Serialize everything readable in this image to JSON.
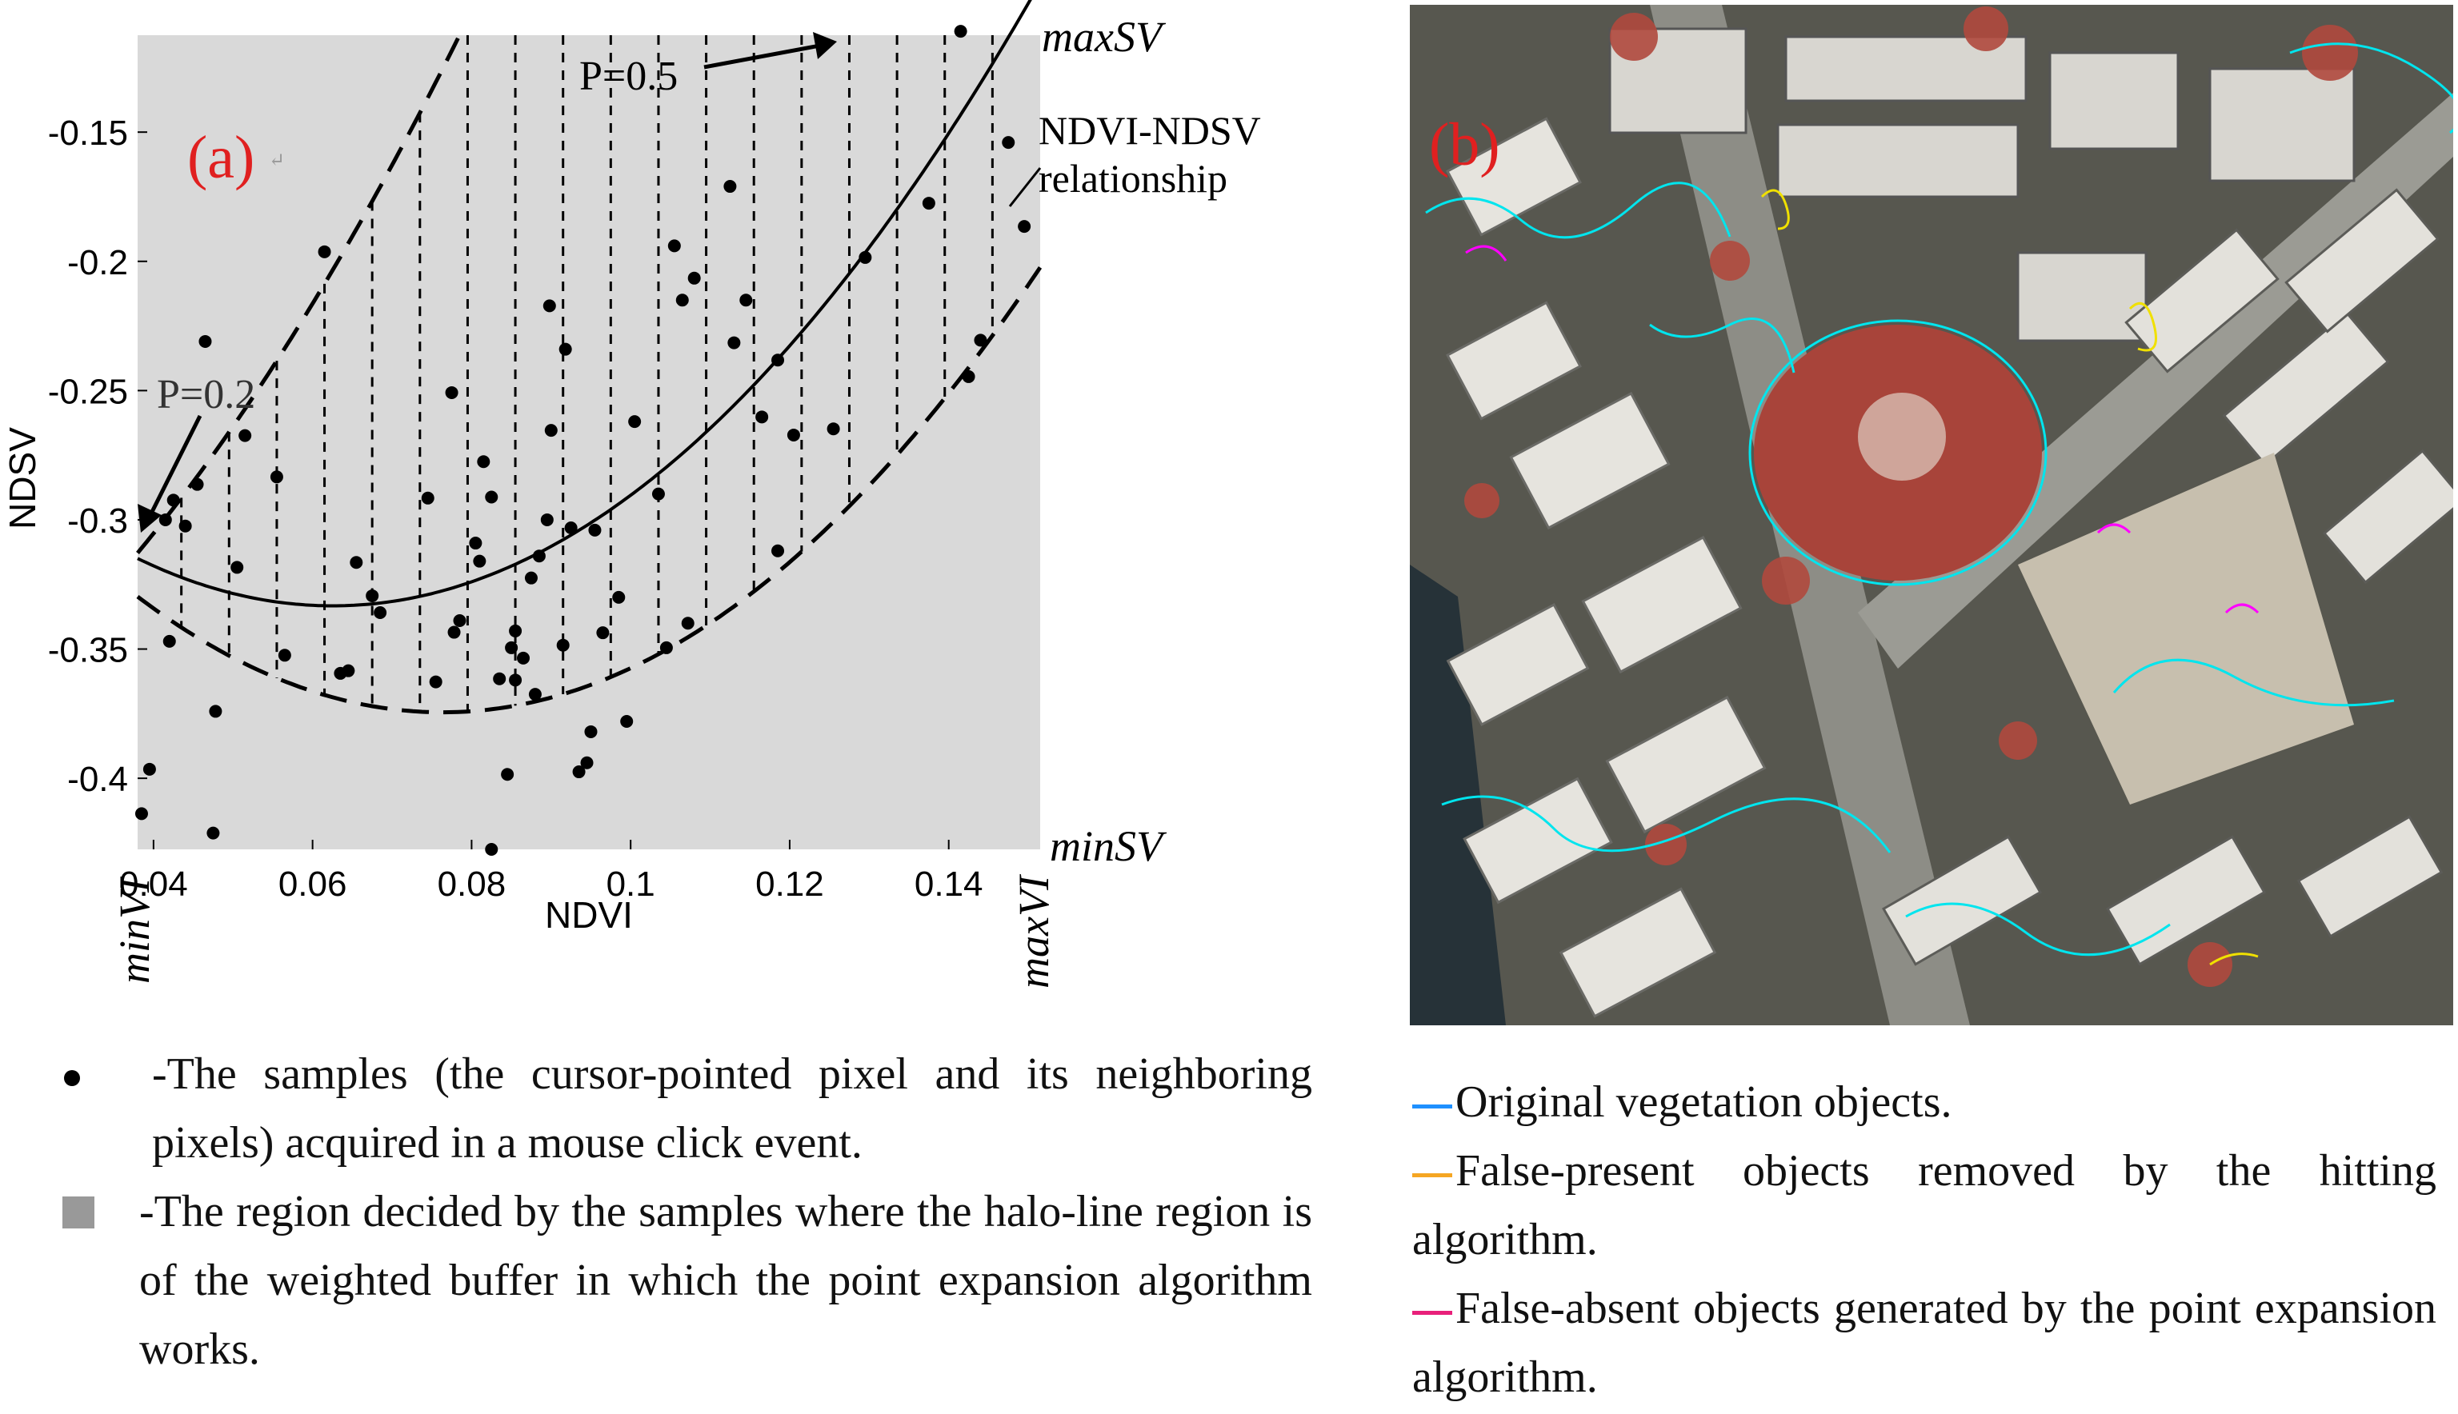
{
  "chart_data": {
    "type": "scatter",
    "panel_label": "(a)",
    "xlabel": "NDVI",
    "ylabel": "NDSV",
    "xlim": [
      0.038,
      0.1515
    ],
    "ylim": [
      -0.4275,
      -0.1125
    ],
    "x_ticks": [
      {
        "value": 0.04,
        "label": "0.04"
      },
      {
        "value": 0.06,
        "label": "0.06"
      },
      {
        "value": 0.08,
        "label": "0.08"
      },
      {
        "value": 0.1,
        "label": "0.1"
      },
      {
        "value": 0.12,
        "label": "0.12"
      },
      {
        "value": 0.14,
        "label": "0.14"
      }
    ],
    "y_ticks": [
      {
        "value": -0.15,
        "label": "-0.15"
      },
      {
        "value": -0.2,
        "label": "-0.2"
      },
      {
        "value": -0.25,
        "label": "-0.25"
      },
      {
        "value": -0.3,
        "label": "-0.3"
      },
      {
        "value": -0.35,
        "label": "-0.35"
      },
      {
        "value": -0.4,
        "label": "-0.4"
      }
    ],
    "annotations": {
      "max_sv": "maxSV",
      "min_sv": "minSV",
      "min_vi": "minVI",
      "max_vi": "maxVI",
      "p_upper": "P=0.5",
      "p_lower": "P=0.2",
      "curve_label_line1": "NDVI-NDSV",
      "curve_label_line2": "relationship"
    },
    "curves": {
      "relationship": {
        "a": 30.46,
        "b": -3.809,
        "c": -0.2142
      },
      "upper_bound": {
        "a": 30.46,
        "b": 1.4,
        "c": -0.41
      },
      "lower_bound": {
        "a": 30.46,
        "b": -4.65,
        "c": -0.197
      }
    },
    "hatch_x": [
      0.0435,
      0.0495,
      0.0555,
      0.0615,
      0.0675,
      0.0735,
      0.0795,
      0.0855,
      0.0915,
      0.0975,
      0.1035,
      0.1095,
      0.1155,
      0.1215,
      0.1275,
      0.1335,
      0.1395,
      0.1455
    ],
    "points": [
      [
        0.0385,
        -0.4137
      ],
      [
        0.0395,
        -0.3965
      ],
      [
        0.0415,
        -0.3
      ],
      [
        0.042,
        -0.347
      ],
      [
        0.0425,
        -0.2924
      ],
      [
        0.044,
        -0.3024
      ],
      [
        0.0455,
        -0.2863
      ],
      [
        0.0465,
        -0.231
      ],
      [
        0.0475,
        -0.4212
      ],
      [
        0.0478,
        -0.3741
      ],
      [
        0.0505,
        -0.3184
      ],
      [
        0.0515,
        -0.2674
      ],
      [
        0.0555,
        -0.2834
      ],
      [
        0.0565,
        -0.3524
      ],
      [
        0.0615,
        -0.1963
      ],
      [
        0.0635,
        -0.3594
      ],
      [
        0.0645,
        -0.3584
      ],
      [
        0.0655,
        -0.3165
      ],
      [
        0.0675,
        -0.3294
      ],
      [
        0.0685,
        -0.3359
      ],
      [
        0.0745,
        -0.2916
      ],
      [
        0.0755,
        -0.3627
      ],
      [
        0.0775,
        -0.2508
      ],
      [
        0.0778,
        -0.3435
      ],
      [
        0.0785,
        -0.339
      ],
      [
        0.0805,
        -0.309
      ],
      [
        0.081,
        -0.316
      ],
      [
        0.0815,
        -0.2775
      ],
      [
        0.0825,
        -0.2912
      ],
      [
        0.0825,
        -0.4275
      ],
      [
        0.0835,
        -0.3615
      ],
      [
        0.0845,
        -0.3985
      ],
      [
        0.085,
        -0.3495
      ],
      [
        0.0855,
        -0.362
      ],
      [
        0.0855,
        -0.343
      ],
      [
        0.0865,
        -0.3535
      ],
      [
        0.0875,
        -0.3225
      ],
      [
        0.0885,
        -0.314
      ],
      [
        0.088,
        -0.3675
      ],
      [
        0.0895,
        -0.3
      ],
      [
        0.0898,
        -0.2172
      ],
      [
        0.09,
        -0.2654
      ],
      [
        0.0915,
        -0.3485
      ],
      [
        0.0918,
        -0.234
      ],
      [
        0.0925,
        -0.3031
      ],
      [
        0.0935,
        -0.3975
      ],
      [
        0.0945,
        -0.394
      ],
      [
        0.095,
        -0.382
      ],
      [
        0.0955,
        -0.304
      ],
      [
        0.0965,
        -0.3437
      ],
      [
        0.0985,
        -0.33
      ],
      [
        0.0995,
        -0.378
      ],
      [
        0.1005,
        -0.262
      ],
      [
        0.1035,
        -0.29
      ],
      [
        0.1045,
        -0.3495
      ],
      [
        0.1055,
        -0.194
      ],
      [
        0.1065,
        -0.215
      ],
      [
        0.1072,
        -0.34
      ],
      [
        0.108,
        -0.2065
      ],
      [
        0.1125,
        -0.171
      ],
      [
        0.113,
        -0.2315
      ],
      [
        0.1145,
        -0.215
      ],
      [
        0.1165,
        -0.2602
      ],
      [
        0.1185,
        -0.312
      ],
      [
        0.1185,
        -0.2382
      ],
      [
        0.1205,
        -0.2672
      ],
      [
        0.1255,
        -0.2648
      ],
      [
        0.1295,
        -0.1985
      ],
      [
        0.1375,
        -0.1775
      ],
      [
        0.1415,
        -0.111
      ],
      [
        0.1425,
        -0.2446
      ],
      [
        0.144,
        -0.2305
      ],
      [
        0.1475,
        -0.154
      ],
      [
        0.1495,
        -0.1865
      ]
    ]
  },
  "chart_colors": {
    "plot_bg": "#d9d9d9",
    "panel_label": "#e02020",
    "ink": "#000000"
  },
  "map_panel": {
    "panel_label": "(b)",
    "label_color": "#e02020",
    "line_colors": {
      "original": "#00e5ee",
      "false_present": "#f0e000",
      "false_absent": "#ff00ff"
    }
  },
  "left_legend": {
    "dot_text": "-The samples (the cursor-pointed pixel and its neighboring pixels) acquired in a mouse click event.",
    "square_text": "-The region decided by the samples where the halo-line region is of the weighted buffer in which the point expansion algorithm works."
  },
  "right_legend": [
    {
      "text": "Original vegetation objects.",
      "color": "#1e90ff"
    },
    {
      "text": "False-present objects removed by the hitting algorithm.",
      "color": "#f5a623"
    },
    {
      "text": "False-absent objects generated by the point expansion algorithm.",
      "color": "#e8207a"
    }
  ]
}
